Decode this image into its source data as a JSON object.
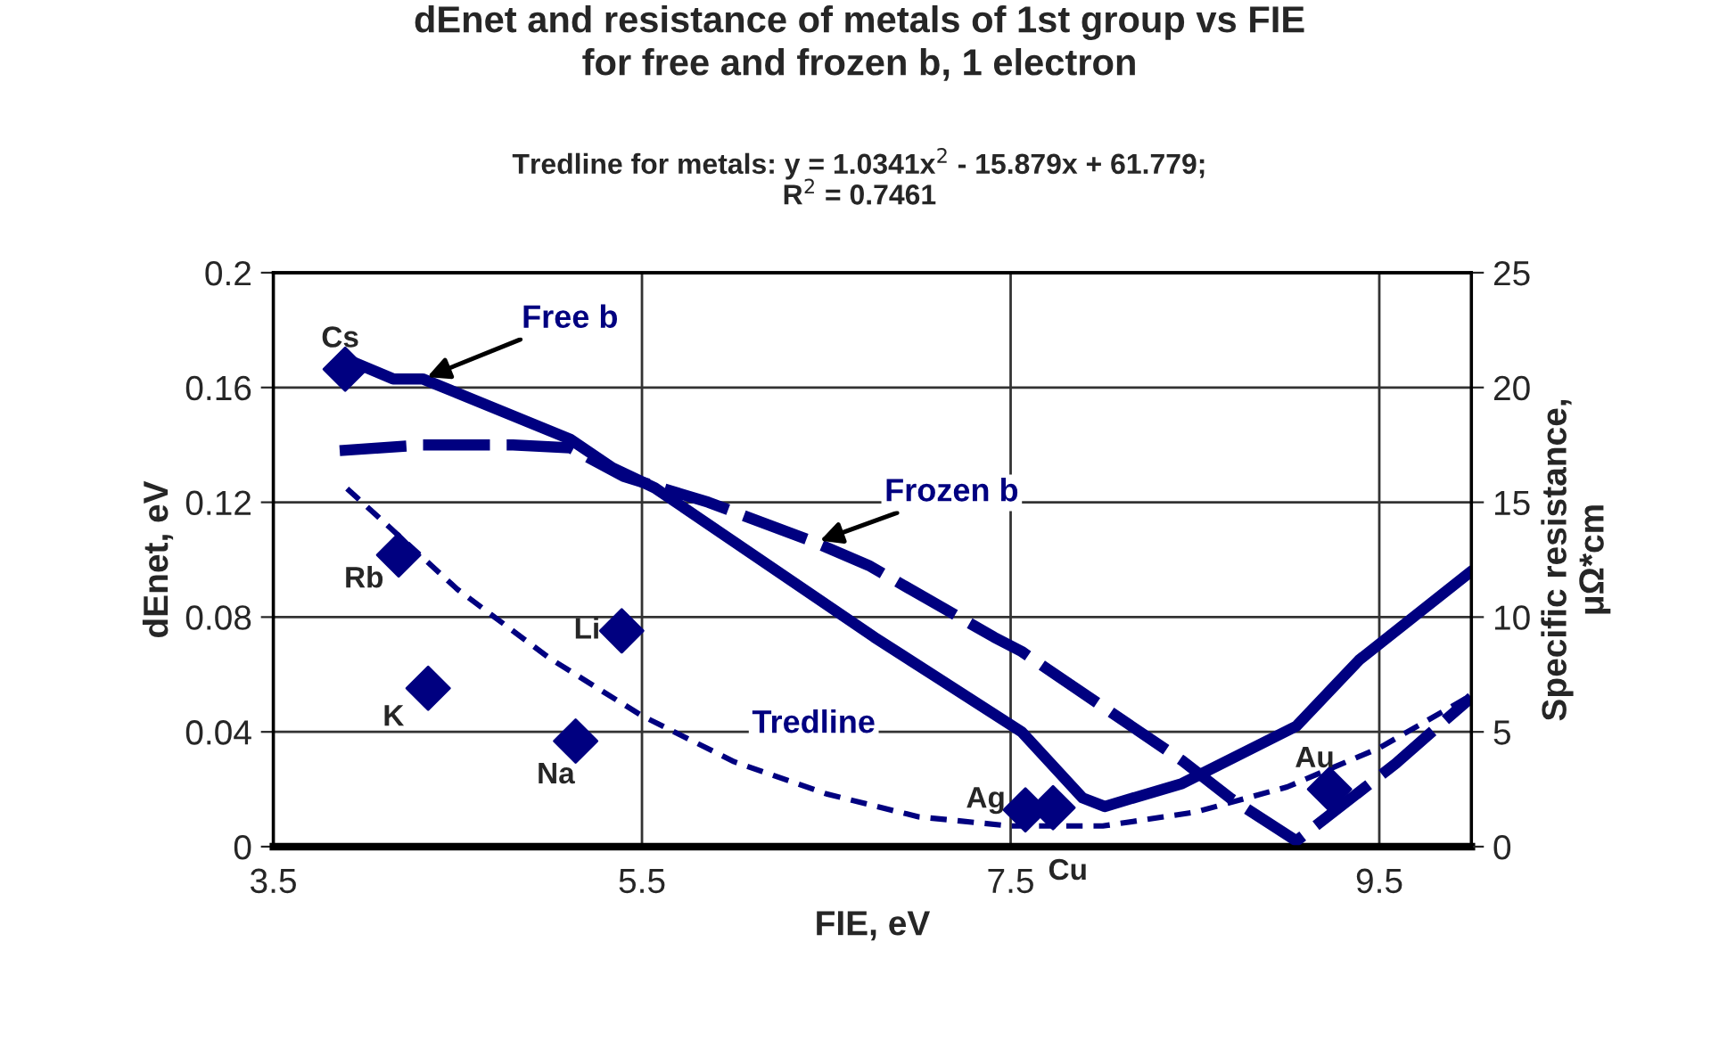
{
  "chart_data": {
    "type": "line",
    "title": "dEnet and resistance of metals of 1st group vs FIE\nfor free and frozen b, 1 electron",
    "subtitle": "Tredline for metals: y = 1.0341x$^{2}$ - 15.879x + 61.779;\nR$^{2}$ = 0.7461",
    "xlabel": "FIE, eV",
    "ylabel": "dEnet, eV",
    "y2label": "Specific resistance,\nμΩ*cm",
    "xlim": [
      3.5,
      10
    ],
    "xticks": [
      3.5,
      5.5,
      7.5,
      9.5
    ],
    "ylim": [
      0,
      0.2
    ],
    "yticks": [
      0,
      0.04,
      0.08,
      0.12,
      0.16,
      0.2
    ],
    "y2lim": [
      0,
      25
    ],
    "y2ticks": [
      0,
      5,
      10,
      15,
      20,
      25
    ],
    "grid": true,
    "legend": false,
    "series": [
      {
        "name": "Free b",
        "line_style": "solid",
        "marker": "none",
        "color": "#000080",
        "x": [
          3.89,
          4.15,
          4.31,
          5.11,
          5.34,
          5.57,
          6.76,
          7.56,
          7.89,
          8.01,
          8.43,
          9.05,
          9.39,
          10.0
        ],
        "values": [
          0.17,
          0.163,
          0.163,
          0.142,
          0.132,
          0.125,
          0.073,
          0.04,
          0.017,
          0.014,
          0.022,
          0.042,
          0.065,
          0.096
        ]
      },
      {
        "name": "Frozen b",
        "line_style": "dashed",
        "marker": "none",
        "color": "#000080",
        "x": [
          3.86,
          4.31,
          4.8,
          5.11,
          5.4,
          5.86,
          6.44,
          6.73,
          7.41,
          7.56,
          8.43,
          8.69,
          9.05,
          9.59,
          9.82,
          10.0
        ],
        "values": [
          0.138,
          0.14,
          0.14,
          0.139,
          0.129,
          0.12,
          0.106,
          0.098,
          0.073,
          0.068,
          0.03,
          0.017,
          0.002,
          0.029,
          0.042,
          0.052
        ]
      },
      {
        "name": "Tredline",
        "axis": "y2",
        "line_style": "dotted",
        "marker": "none",
        "color": "#000080",
        "x": [
          3.9,
          4.5,
          5.0,
          5.5,
          6.0,
          6.5,
          7.0,
          7.5,
          8.0,
          8.5,
          9.0,
          9.5,
          10.0
        ],
        "values": [
          15.6,
          11.2,
          8.2,
          5.7,
          3.7,
          2.3,
          1.3,
          0.9,
          0.9,
          1.5,
          2.6,
          4.3,
          6.6
        ]
      },
      {
        "type": "scatter",
        "axis": "y2",
        "marker": "diamond",
        "color": "#000080",
        "x": [
          3.89,
          4.18,
          4.34,
          5.14,
          5.39,
          7.58,
          7.73,
          9.23
        ],
        "values": [
          20.8,
          12.7,
          6.9,
          4.6,
          9.4,
          1.6,
          1.7,
          2.5
        ],
        "value_labels": [
          "Cs",
          "Rb",
          "K",
          "Na",
          "Li",
          "Ag",
          "Cu",
          "Au"
        ]
      }
    ]
  }
}
